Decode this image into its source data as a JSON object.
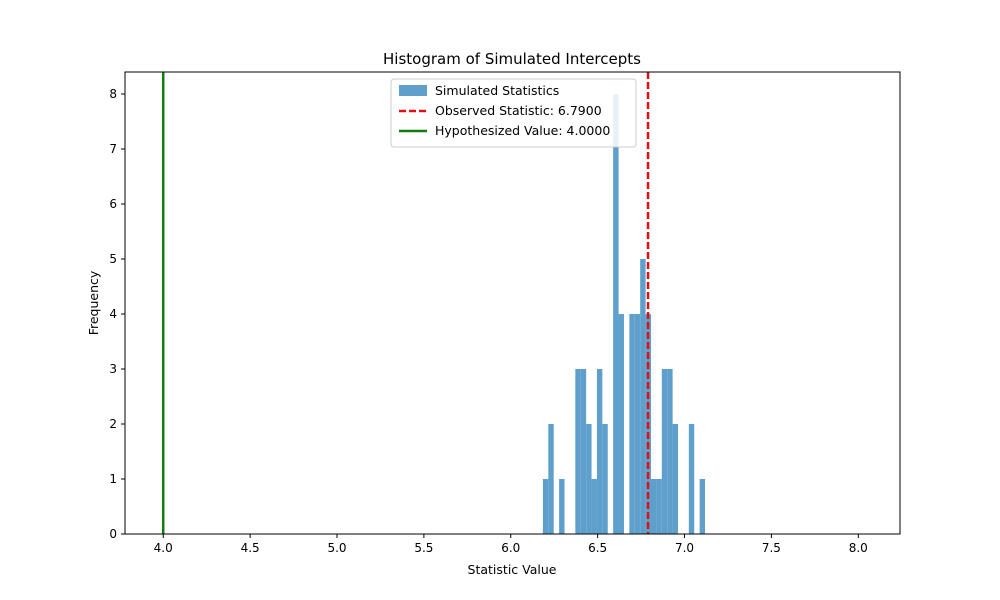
{
  "chart_data": {
    "type": "bar",
    "title": "Histogram of Simulated Intercepts",
    "xlabel": "Statistic Value",
    "ylabel": "Frequency",
    "xlim": [
      3.78,
      8.24
    ],
    "ylim": [
      0,
      8.4
    ],
    "x_ticks": [
      4.0,
      4.5,
      5.0,
      5.5,
      6.0,
      6.5,
      7.0,
      7.5,
      8.0
    ],
    "x_tick_labels": [
      "4.0",
      "4.5",
      "5.0",
      "5.5",
      "6.0",
      "6.5",
      "7.0",
      "7.5",
      "8.0"
    ],
    "y_ticks": [
      0,
      1,
      2,
      3,
      4,
      5,
      6,
      7,
      8
    ],
    "y_tick_labels": [
      "0",
      "1",
      "2",
      "3",
      "4",
      "5",
      "6",
      "7",
      "8"
    ],
    "grid": false,
    "legend_position": "top-center",
    "bin_start": 6.185,
    "bin_width": 0.0311,
    "counts": [
      1,
      2,
      0,
      1,
      0,
      0,
      3,
      3,
      2,
      1,
      3,
      2,
      0,
      8,
      4,
      0,
      4,
      4,
      5,
      4,
      1,
      1,
      3,
      3,
      2,
      0,
      0,
      2,
      0,
      1
    ],
    "series": [
      {
        "name": "Simulated Statistics",
        "color": "#5f9fcc"
      }
    ],
    "reference_lines": [
      {
        "name": "Observed Statistic: 6.7900",
        "value": 6.79,
        "color": "#e01010",
        "style": "dashed"
      },
      {
        "name": "Hypothesized Value: 4.0000",
        "value": 4.0,
        "color": "#117d11",
        "style": "solid"
      }
    ]
  }
}
